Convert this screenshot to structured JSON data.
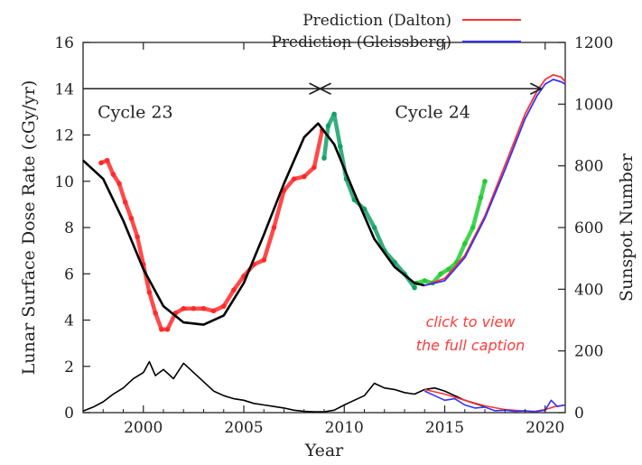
{
  "chart_data": {
    "type": "line",
    "xlabel": "Year",
    "ylabel_left": "Lunar Surface Dose Rate (cGy/yr)",
    "ylabel_right": "Sunspot Number",
    "xlim": [
      1997,
      2021
    ],
    "ylim_left": [
      0,
      16
    ],
    "ylim_right": [
      0,
      1200
    ],
    "x_ticks": [
      2000,
      2005,
      2010,
      2015,
      2020
    ],
    "y_ticks_left": [
      0,
      2,
      4,
      6,
      8,
      10,
      12,
      14,
      16
    ],
    "y_ticks_right": [
      0,
      200,
      400,
      600,
      800,
      1000,
      1200
    ],
    "legend": [
      {
        "label": "Prediction (Dalton)",
        "color": "#ff3333"
      },
      {
        "label": "Prediction (Gleissberg)",
        "color": "#3333ff"
      }
    ],
    "legend_position": "top-right",
    "cycles": [
      {
        "label": "Cycle 23",
        "start": 1997,
        "end": 2008.8
      },
      {
        "label": "Cycle 24",
        "start": 2008.8,
        "end": 2019.8
      }
    ],
    "cycle_line_level": 14,
    "annotation": {
      "line1": "click to view",
      "line2": "the full caption"
    },
    "series": [
      {
        "role": "dose-measured-cycle23",
        "color": "#ff2a2a",
        "axis": "left",
        "style": "markers",
        "x": [
          1997.9,
          1998.2,
          1998.5,
          1998.8,
          1999.1,
          1999.4,
          1999.7,
          2000.0,
          2000.3,
          2000.6,
          2000.9,
          2001.2,
          2001.6,
          2002.0,
          2002.5,
          2003.0,
          2003.5,
          2004.0,
          2004.5,
          2005.0,
          2005.5,
          2006.0,
          2006.5,
          2007.0,
          2007.5,
          2008.0,
          2008.5,
          2008.9
        ],
        "y": [
          10.8,
          10.9,
          10.3,
          9.9,
          9.1,
          8.4,
          7.6,
          6.4,
          5.2,
          4.3,
          3.6,
          3.6,
          4.3,
          4.5,
          4.5,
          4.5,
          4.4,
          4.6,
          5.3,
          5.9,
          6.4,
          6.6,
          8.0,
          9.6,
          10.1,
          10.2,
          10.6,
          12.2
        ]
      },
      {
        "role": "dose-measured-cycle24a",
        "color": "#13a06a",
        "axis": "left",
        "style": "markers",
        "x": [
          2009.0,
          2009.2,
          2009.5,
          2009.8,
          2010.1,
          2010.5,
          2011.0,
          2011.5,
          2012.0,
          2012.5,
          2013.0,
          2013.5
        ],
        "y": [
          11.0,
          12.4,
          12.9,
          11.5,
          10.1,
          9.2,
          8.8,
          8.0,
          7.0,
          6.5,
          6.0,
          5.4
        ]
      },
      {
        "role": "dose-measured-cycle24b",
        "color": "#22cc33",
        "axis": "left",
        "style": "markers",
        "x": [
          2013.6,
          2014.0,
          2014.4,
          2014.8,
          2015.2,
          2015.6,
          2016.0,
          2016.4,
          2016.8,
          2017.0
        ],
        "y": [
          5.6,
          5.7,
          5.6,
          6.0,
          6.2,
          6.5,
          7.3,
          8.0,
          9.3,
          10.0
        ]
      },
      {
        "role": "dose-model",
        "color": "#000000",
        "axis": "left",
        "style": "line",
        "x": [
          1997.0,
          1998.0,
          1999.0,
          2000.0,
          2001.0,
          2002.0,
          2003.0,
          2004.0,
          2005.0,
          2006.0,
          2007.0,
          2008.0,
          2008.7,
          2009.5,
          2010.5,
          2011.5,
          2012.5,
          2013.5,
          2014.0
        ],
        "y": [
          10.9,
          10.1,
          8.3,
          6.2,
          4.6,
          3.9,
          3.8,
          4.2,
          5.6,
          7.7,
          9.9,
          11.9,
          12.5,
          11.6,
          9.5,
          7.5,
          6.3,
          5.6,
          5.5
        ]
      },
      {
        "role": "dose-prediction-dalton",
        "color": "#ff3333",
        "axis": "left",
        "style": "line",
        "x": [
          2014.0,
          2015.0,
          2016.0,
          2017.0,
          2018.0,
          2019.0,
          2019.6,
          2020.0,
          2020.4,
          2020.8,
          2021.0
        ],
        "y": [
          5.5,
          5.8,
          6.8,
          8.5,
          10.7,
          12.9,
          13.9,
          14.4,
          14.6,
          14.5,
          14.3
        ]
      },
      {
        "role": "dose-prediction-gleissberg",
        "color": "#3333ff",
        "axis": "left",
        "style": "line",
        "x": [
          2014.0,
          2015.0,
          2016.0,
          2017.0,
          2018.0,
          2019.0,
          2019.6,
          2020.0,
          2020.4,
          2020.8,
          2021.0
        ],
        "y": [
          5.5,
          5.7,
          6.7,
          8.4,
          10.5,
          12.7,
          13.7,
          14.2,
          14.4,
          14.3,
          14.2
        ]
      },
      {
        "role": "sunspot-observed",
        "color": "#000000",
        "axis": "right",
        "style": "line",
        "x": [
          1997.0,
          1997.5,
          1998.0,
          1998.5,
          1999.0,
          1999.5,
          2000.0,
          2000.3,
          2000.6,
          2001.0,
          2001.5,
          2002.0,
          2002.5,
          2003.0,
          2003.5,
          2004.0,
          2004.5,
          2005.0,
          2005.5,
          2006.0,
          2006.5,
          2007.0,
          2007.5,
          2008.0,
          2008.5,
          2009.0,
          2009.5,
          2010.0,
          2010.5,
          2011.0,
          2011.5,
          2012.0,
          2012.5,
          2013.0,
          2013.5,
          2014.0,
          2014.5,
          2015.0,
          2015.5,
          2016.0,
          2016.5,
          2017.0
        ],
        "y": [
          5,
          18,
          35,
          60,
          80,
          110,
          130,
          165,
          120,
          140,
          110,
          160,
          130,
          100,
          70,
          55,
          45,
          40,
          30,
          25,
          20,
          15,
          8,
          4,
          3,
          3,
          8,
          25,
          40,
          55,
          95,
          80,
          75,
          65,
          60,
          75,
          80,
          70,
          55,
          40,
          30,
          20
        ]
      },
      {
        "role": "sunspot-prediction-dalton",
        "color": "#ff3333",
        "axis": "right",
        "style": "line",
        "x": [
          2014.0,
          2015.0,
          2016.0,
          2017.0,
          2018.0,
          2019.0,
          2019.5,
          2020.0,
          2020.5,
          2021.0
        ],
        "y": [
          75,
          60,
          40,
          22,
          10,
          5,
          4,
          10,
          20,
          25
        ]
      },
      {
        "role": "sunspot-prediction-gleissberg",
        "color": "#3333ff",
        "axis": "right",
        "style": "line",
        "x": [
          2014.0,
          2014.5,
          2015.0,
          2015.5,
          2016.0,
          2016.5,
          2017.0,
          2017.5,
          2018.0,
          2018.5,
          2019.0,
          2019.5,
          2020.0,
          2020.3,
          2020.6,
          2021.0
        ],
        "y": [
          70,
          55,
          40,
          45,
          25,
          15,
          18,
          6,
          8,
          4,
          6,
          3,
          8,
          40,
          20,
          25
        ]
      }
    ]
  }
}
